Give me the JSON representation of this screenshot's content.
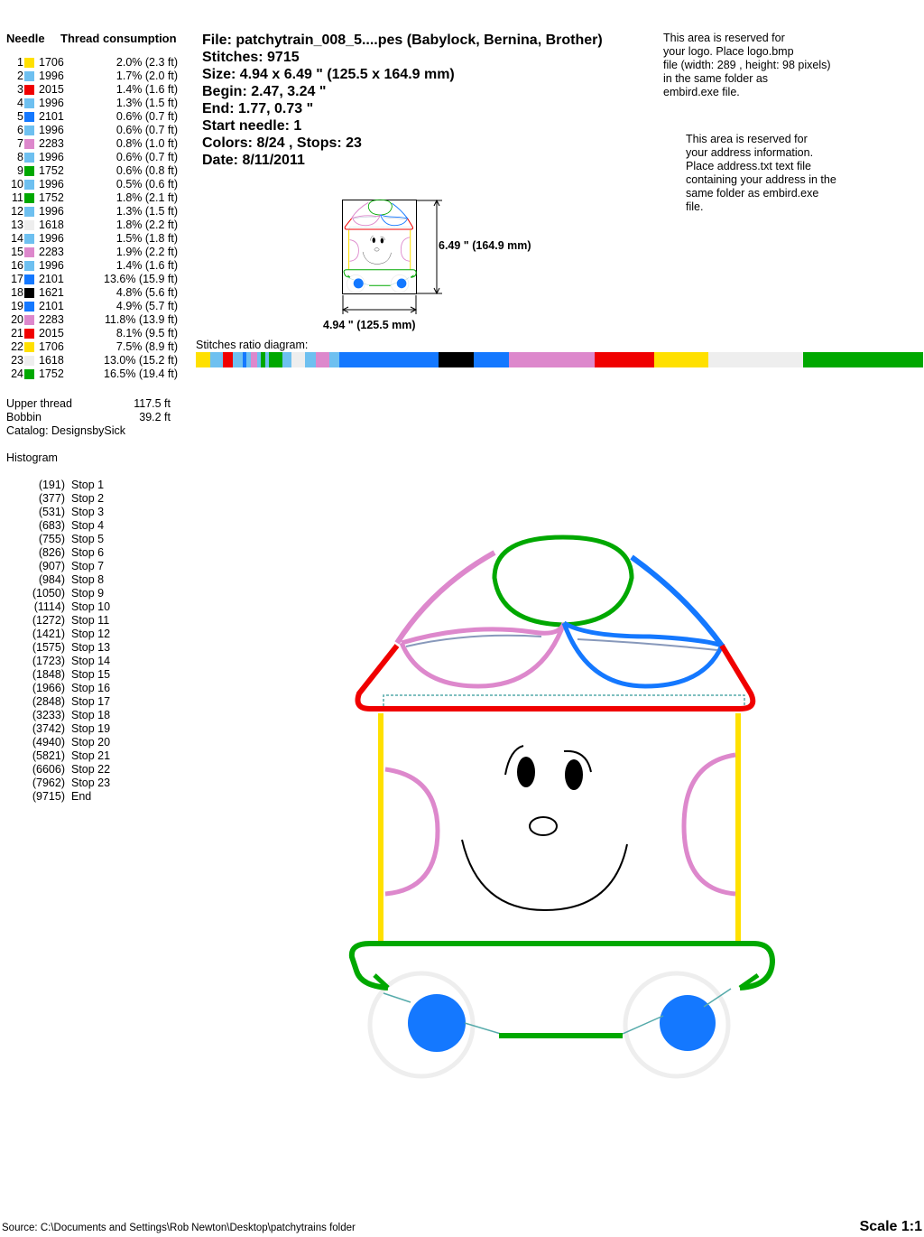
{
  "table": {
    "header_needle": "Needle",
    "header_thread": "Thread consumption",
    "rows": [
      {
        "n": "1",
        "color": "#FFE000",
        "code": "1706",
        "pct": "2.0% (2.3 ft)",
        "v": 2.0
      },
      {
        "n": "2",
        "color": "#6EC0F0",
        "code": "1996",
        "pct": "1.7% (2.0 ft)",
        "v": 1.7
      },
      {
        "n": "3",
        "color": "#F00000",
        "code": "2015",
        "pct": "1.4% (1.6 ft)",
        "v": 1.4
      },
      {
        "n": "4",
        "color": "#6EC0F0",
        "code": "1996",
        "pct": "1.3% (1.5 ft)",
        "v": 1.3
      },
      {
        "n": "5",
        "color": "#1478FF",
        "code": "2101",
        "pct": "0.6% (0.7 ft)",
        "v": 0.6
      },
      {
        "n": "6",
        "color": "#6EC0F0",
        "code": "1996",
        "pct": "0.6% (0.7 ft)",
        "v": 0.6
      },
      {
        "n": "7",
        "color": "#DD88CC",
        "code": "2283",
        "pct": "0.8% (1.0 ft)",
        "v": 0.8
      },
      {
        "n": "8",
        "color": "#6EC0F0",
        "code": "1996",
        "pct": "0.6% (0.7 ft)",
        "v": 0.6
      },
      {
        "n": "9",
        "color": "#00A800",
        "code": "1752",
        "pct": "0.6% (0.8 ft)",
        "v": 0.6
      },
      {
        "n": "10",
        "color": "#6EC0F0",
        "code": "1996",
        "pct": "0.5% (0.6 ft)",
        "v": 0.5
      },
      {
        "n": "11",
        "color": "#00A800",
        "code": "1752",
        "pct": "1.8% (2.1 ft)",
        "v": 1.8
      },
      {
        "n": "12",
        "color": "#6EC0F0",
        "code": "1996",
        "pct": "1.3% (1.5 ft)",
        "v": 1.3
      },
      {
        "n": "13",
        "color": "#EEEEEE",
        "code": "1618",
        "pct": "1.8% (2.2 ft)",
        "v": 1.8
      },
      {
        "n": "14",
        "color": "#6EC0F0",
        "code": "1996",
        "pct": "1.5% (1.8 ft)",
        "v": 1.5
      },
      {
        "n": "15",
        "color": "#DD88CC",
        "code": "2283",
        "pct": "1.9% (2.2 ft)",
        "v": 1.9
      },
      {
        "n": "16",
        "color": "#6EC0F0",
        "code": "1996",
        "pct": "1.4% (1.6 ft)",
        "v": 1.4
      },
      {
        "n": "17",
        "color": "#1478FF",
        "code": "2101",
        "pct": "13.6% (15.9 ft)",
        "v": 13.6
      },
      {
        "n": "18",
        "color": "#000000",
        "code": "1621",
        "pct": "4.8% (5.6 ft)",
        "v": 4.8
      },
      {
        "n": "19",
        "color": "#1478FF",
        "code": "2101",
        "pct": "4.9% (5.7 ft)",
        "v": 4.9
      },
      {
        "n": "20",
        "color": "#DD88CC",
        "code": "2283",
        "pct": "11.8% (13.9 ft)",
        "v": 11.8
      },
      {
        "n": "21",
        "color": "#F00000",
        "code": "2015",
        "pct": "8.1% (9.5 ft)",
        "v": 8.1
      },
      {
        "n": "22",
        "color": "#FFE000",
        "code": "1706",
        "pct": "7.5% (8.9 ft)",
        "v": 7.5
      },
      {
        "n": "23",
        "color": "#EEEEEE",
        "code": "1618",
        "pct": "13.0% (15.2 ft)",
        "v": 13.0
      },
      {
        "n": "24",
        "color": "#00A800",
        "code": "1752",
        "pct": "16.5% (19.4 ft)",
        "v": 16.5
      }
    ]
  },
  "totals": {
    "upper_label": "Upper thread",
    "upper_value": "117.5 ft",
    "bobbin_label": "Bobbin",
    "bobbin_value": "39.2 ft",
    "catalog": "Catalog: DesignsbySick"
  },
  "histogram": {
    "title": "Histogram",
    "items": [
      {
        "v": "(191)",
        "s": "Stop 1"
      },
      {
        "v": "(377)",
        "s": "Stop 2"
      },
      {
        "v": "(531)",
        "s": "Stop 3"
      },
      {
        "v": "(683)",
        "s": "Stop 4"
      },
      {
        "v": "(755)",
        "s": "Stop 5"
      },
      {
        "v": "(826)",
        "s": "Stop 6"
      },
      {
        "v": "(907)",
        "s": "Stop 7"
      },
      {
        "v": "(984)",
        "s": "Stop 8"
      },
      {
        "v": "(1050)",
        "s": "Stop 9"
      },
      {
        "v": "(1114)",
        "s": "Stop 10"
      },
      {
        "v": "(1272)",
        "s": "Stop 11"
      },
      {
        "v": "(1421)",
        "s": "Stop 12"
      },
      {
        "v": "(1575)",
        "s": "Stop 13"
      },
      {
        "v": "(1723)",
        "s": "Stop 14"
      },
      {
        "v": "(1848)",
        "s": "Stop 15"
      },
      {
        "v": "(1966)",
        "s": "Stop 16"
      },
      {
        "v": "(2848)",
        "s": "Stop 17"
      },
      {
        "v": "(3233)",
        "s": "Stop 18"
      },
      {
        "v": "(3742)",
        "s": "Stop 19"
      },
      {
        "v": "(4940)",
        "s": "Stop 20"
      },
      {
        "v": "(5821)",
        "s": "Stop 21"
      },
      {
        "v": "(6606)",
        "s": "Stop 22"
      },
      {
        "v": "(7962)",
        "s": "Stop 23"
      },
      {
        "v": "(9715)",
        "s": "End"
      }
    ]
  },
  "info": {
    "file": "File: patchytrain_008_5....pes  (Babylock, Bernina, Brother)",
    "stitches": "Stitches: 9715",
    "size": "Size: 4.94 x 6.49 \" (125.5 x 164.9 mm)",
    "begin": "Begin: 2.47, 3.24 \"",
    "end": "End: 1.77, 0.73 \"",
    "start_needle": "Start needle: 1",
    "colors": "Colors: 8/24 , Stops: 23",
    "date": "Date: 8/11/2011"
  },
  "logo_note": [
    "This area is reserved for",
    "your logo. Place logo.bmp",
    "file (width: 289 , height: 98 pixels)",
    "in the same folder as",
    "embird.exe file."
  ],
  "address_note": [
    "This area is reserved for",
    "your address information.",
    "Place address.txt text file",
    "containing your address in the",
    "same folder as embird.exe",
    "file."
  ],
  "thumb": {
    "height_label": "6.49 \" (164.9 mm)",
    "width_label": "4.94 \" (125.5 mm)"
  },
  "ratio_label": "Stitches ratio diagram:",
  "footer": {
    "source": "Source: C:\\Documents and Settings\\Rob Newton\\Desktop\\patchytrains folder",
    "scale": "Scale 1:1"
  }
}
